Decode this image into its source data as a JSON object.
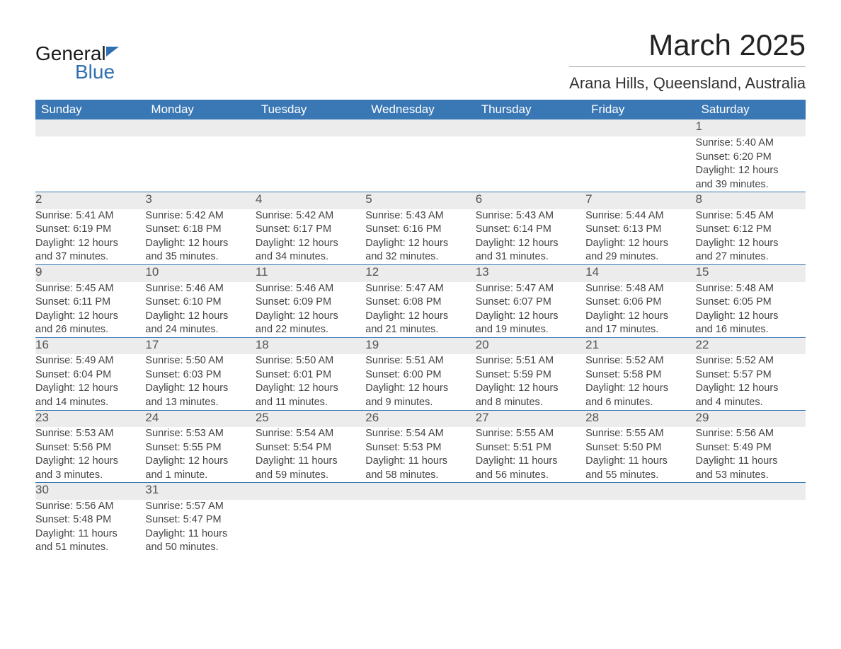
{
  "logo": {
    "word1": "General",
    "word2": "Blue"
  },
  "title": "March 2025",
  "location": "Arana Hills, Queensland, Australia",
  "columns": [
    "Sunday",
    "Monday",
    "Tuesday",
    "Wednesday",
    "Thursday",
    "Friday",
    "Saturday"
  ],
  "colors": {
    "header_bg": "#3a78b5",
    "header_text": "#ffffff",
    "daynum_bg": "#ececec",
    "row_border": "#3a78b5",
    "body_text": "#444444",
    "title_text": "#222222",
    "logo_blue": "#2f6fb0"
  },
  "weeks": [
    [
      null,
      null,
      null,
      null,
      null,
      null,
      {
        "n": "1",
        "sr": "Sunrise: 5:40 AM",
        "ss": "Sunset: 6:20 PM",
        "d1": "Daylight: 12 hours",
        "d2": "and 39 minutes."
      }
    ],
    [
      {
        "n": "2",
        "sr": "Sunrise: 5:41 AM",
        "ss": "Sunset: 6:19 PM",
        "d1": "Daylight: 12 hours",
        "d2": "and 37 minutes."
      },
      {
        "n": "3",
        "sr": "Sunrise: 5:42 AM",
        "ss": "Sunset: 6:18 PM",
        "d1": "Daylight: 12 hours",
        "d2": "and 35 minutes."
      },
      {
        "n": "4",
        "sr": "Sunrise: 5:42 AM",
        "ss": "Sunset: 6:17 PM",
        "d1": "Daylight: 12 hours",
        "d2": "and 34 minutes."
      },
      {
        "n": "5",
        "sr": "Sunrise: 5:43 AM",
        "ss": "Sunset: 6:16 PM",
        "d1": "Daylight: 12 hours",
        "d2": "and 32 minutes."
      },
      {
        "n": "6",
        "sr": "Sunrise: 5:43 AM",
        "ss": "Sunset: 6:14 PM",
        "d1": "Daylight: 12 hours",
        "d2": "and 31 minutes."
      },
      {
        "n": "7",
        "sr": "Sunrise: 5:44 AM",
        "ss": "Sunset: 6:13 PM",
        "d1": "Daylight: 12 hours",
        "d2": "and 29 minutes."
      },
      {
        "n": "8",
        "sr": "Sunrise: 5:45 AM",
        "ss": "Sunset: 6:12 PM",
        "d1": "Daylight: 12 hours",
        "d2": "and 27 minutes."
      }
    ],
    [
      {
        "n": "9",
        "sr": "Sunrise: 5:45 AM",
        "ss": "Sunset: 6:11 PM",
        "d1": "Daylight: 12 hours",
        "d2": "and 26 minutes."
      },
      {
        "n": "10",
        "sr": "Sunrise: 5:46 AM",
        "ss": "Sunset: 6:10 PM",
        "d1": "Daylight: 12 hours",
        "d2": "and 24 minutes."
      },
      {
        "n": "11",
        "sr": "Sunrise: 5:46 AM",
        "ss": "Sunset: 6:09 PM",
        "d1": "Daylight: 12 hours",
        "d2": "and 22 minutes."
      },
      {
        "n": "12",
        "sr": "Sunrise: 5:47 AM",
        "ss": "Sunset: 6:08 PM",
        "d1": "Daylight: 12 hours",
        "d2": "and 21 minutes."
      },
      {
        "n": "13",
        "sr": "Sunrise: 5:47 AM",
        "ss": "Sunset: 6:07 PM",
        "d1": "Daylight: 12 hours",
        "d2": "and 19 minutes."
      },
      {
        "n": "14",
        "sr": "Sunrise: 5:48 AM",
        "ss": "Sunset: 6:06 PM",
        "d1": "Daylight: 12 hours",
        "d2": "and 17 minutes."
      },
      {
        "n": "15",
        "sr": "Sunrise: 5:48 AM",
        "ss": "Sunset: 6:05 PM",
        "d1": "Daylight: 12 hours",
        "d2": "and 16 minutes."
      }
    ],
    [
      {
        "n": "16",
        "sr": "Sunrise: 5:49 AM",
        "ss": "Sunset: 6:04 PM",
        "d1": "Daylight: 12 hours",
        "d2": "and 14 minutes."
      },
      {
        "n": "17",
        "sr": "Sunrise: 5:50 AM",
        "ss": "Sunset: 6:03 PM",
        "d1": "Daylight: 12 hours",
        "d2": "and 13 minutes."
      },
      {
        "n": "18",
        "sr": "Sunrise: 5:50 AM",
        "ss": "Sunset: 6:01 PM",
        "d1": "Daylight: 12 hours",
        "d2": "and 11 minutes."
      },
      {
        "n": "19",
        "sr": "Sunrise: 5:51 AM",
        "ss": "Sunset: 6:00 PM",
        "d1": "Daylight: 12 hours",
        "d2": "and 9 minutes."
      },
      {
        "n": "20",
        "sr": "Sunrise: 5:51 AM",
        "ss": "Sunset: 5:59 PM",
        "d1": "Daylight: 12 hours",
        "d2": "and 8 minutes."
      },
      {
        "n": "21",
        "sr": "Sunrise: 5:52 AM",
        "ss": "Sunset: 5:58 PM",
        "d1": "Daylight: 12 hours",
        "d2": "and 6 minutes."
      },
      {
        "n": "22",
        "sr": "Sunrise: 5:52 AM",
        "ss": "Sunset: 5:57 PM",
        "d1": "Daylight: 12 hours",
        "d2": "and 4 minutes."
      }
    ],
    [
      {
        "n": "23",
        "sr": "Sunrise: 5:53 AM",
        "ss": "Sunset: 5:56 PM",
        "d1": "Daylight: 12 hours",
        "d2": "and 3 minutes."
      },
      {
        "n": "24",
        "sr": "Sunrise: 5:53 AM",
        "ss": "Sunset: 5:55 PM",
        "d1": "Daylight: 12 hours",
        "d2": "and 1 minute."
      },
      {
        "n": "25",
        "sr": "Sunrise: 5:54 AM",
        "ss": "Sunset: 5:54 PM",
        "d1": "Daylight: 11 hours",
        "d2": "and 59 minutes."
      },
      {
        "n": "26",
        "sr": "Sunrise: 5:54 AM",
        "ss": "Sunset: 5:53 PM",
        "d1": "Daylight: 11 hours",
        "d2": "and 58 minutes."
      },
      {
        "n": "27",
        "sr": "Sunrise: 5:55 AM",
        "ss": "Sunset: 5:51 PM",
        "d1": "Daylight: 11 hours",
        "d2": "and 56 minutes."
      },
      {
        "n": "28",
        "sr": "Sunrise: 5:55 AM",
        "ss": "Sunset: 5:50 PM",
        "d1": "Daylight: 11 hours",
        "d2": "and 55 minutes."
      },
      {
        "n": "29",
        "sr": "Sunrise: 5:56 AM",
        "ss": "Sunset: 5:49 PM",
        "d1": "Daylight: 11 hours",
        "d2": "and 53 minutes."
      }
    ],
    [
      {
        "n": "30",
        "sr": "Sunrise: 5:56 AM",
        "ss": "Sunset: 5:48 PM",
        "d1": "Daylight: 11 hours",
        "d2": "and 51 minutes."
      },
      {
        "n": "31",
        "sr": "Sunrise: 5:57 AM",
        "ss": "Sunset: 5:47 PM",
        "d1": "Daylight: 11 hours",
        "d2": "and 50 minutes."
      },
      null,
      null,
      null,
      null,
      null
    ]
  ]
}
